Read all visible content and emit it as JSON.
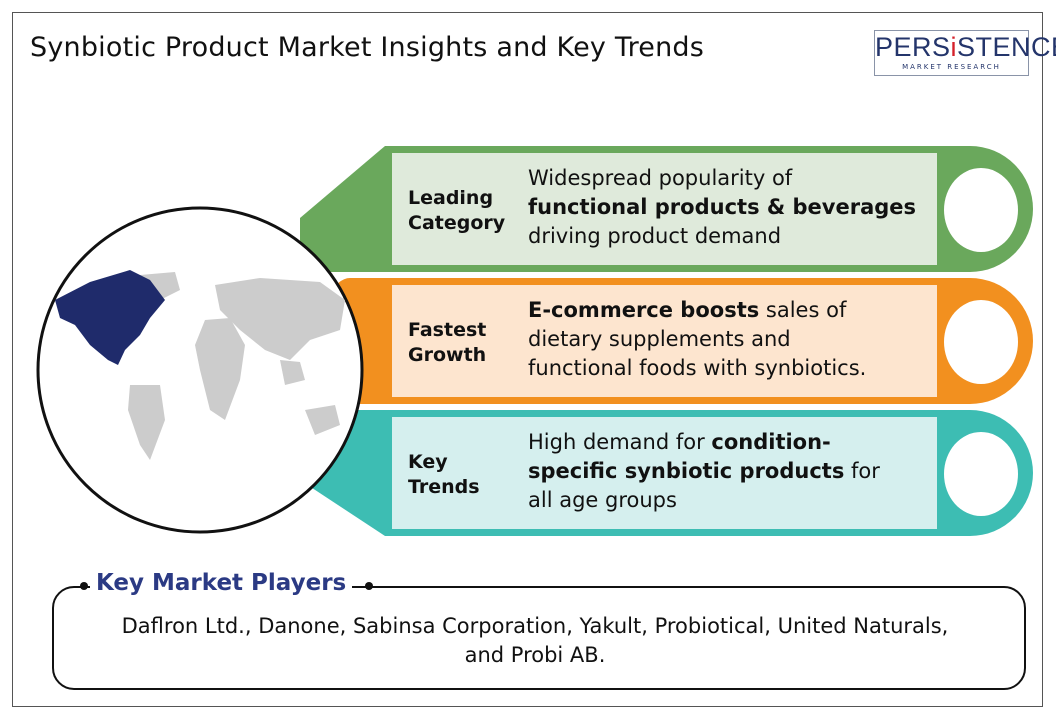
{
  "title": "Synbiotic Product Market Insights and Key Trends",
  "logo": {
    "main_pre": "PERS",
    "main_i": "i",
    "main_post": "STENCE",
    "sub": "MARKET RESEARCH"
  },
  "colors": {
    "green": "#6aa85c",
    "green_light": "#dfeadb",
    "orange": "#f2901f",
    "orange_light": "#fde5cf",
    "teal": "#3dbdb3",
    "teal_light": "#d5efee",
    "navy": "#1f2b6b",
    "map_gray": "#cccccc",
    "players_title": "#2b3a84"
  },
  "insights": [
    {
      "label_l1": "Leading",
      "label_l2": "Category",
      "line1": "Widespread popularity of",
      "line2_bold": "functional products & beverages",
      "line3": "driving product demand"
    },
    {
      "label_l1": "Fastest",
      "label_l2": "Growth",
      "line1_bold": "E-commerce boosts",
      "line1_rest": " sales of",
      "line2": "dietary supplements and",
      "line3": "functional foods with synbiotics."
    },
    {
      "label_l1": "Key",
      "label_l2": "Trends",
      "line1_pre": "High demand for ",
      "line1_bold": "condition-",
      "line2_bold": "specific synbiotic products",
      "line2_rest": " for",
      "line3": "all age groups"
    }
  ],
  "players": {
    "title": "Key Market Players",
    "text": "Daflron Ltd., Danone, Sabinsa Corporation, Yakult, Probiotical, United Naturals, and Probi AB."
  },
  "globe": {
    "highlighted_region": "North America"
  }
}
